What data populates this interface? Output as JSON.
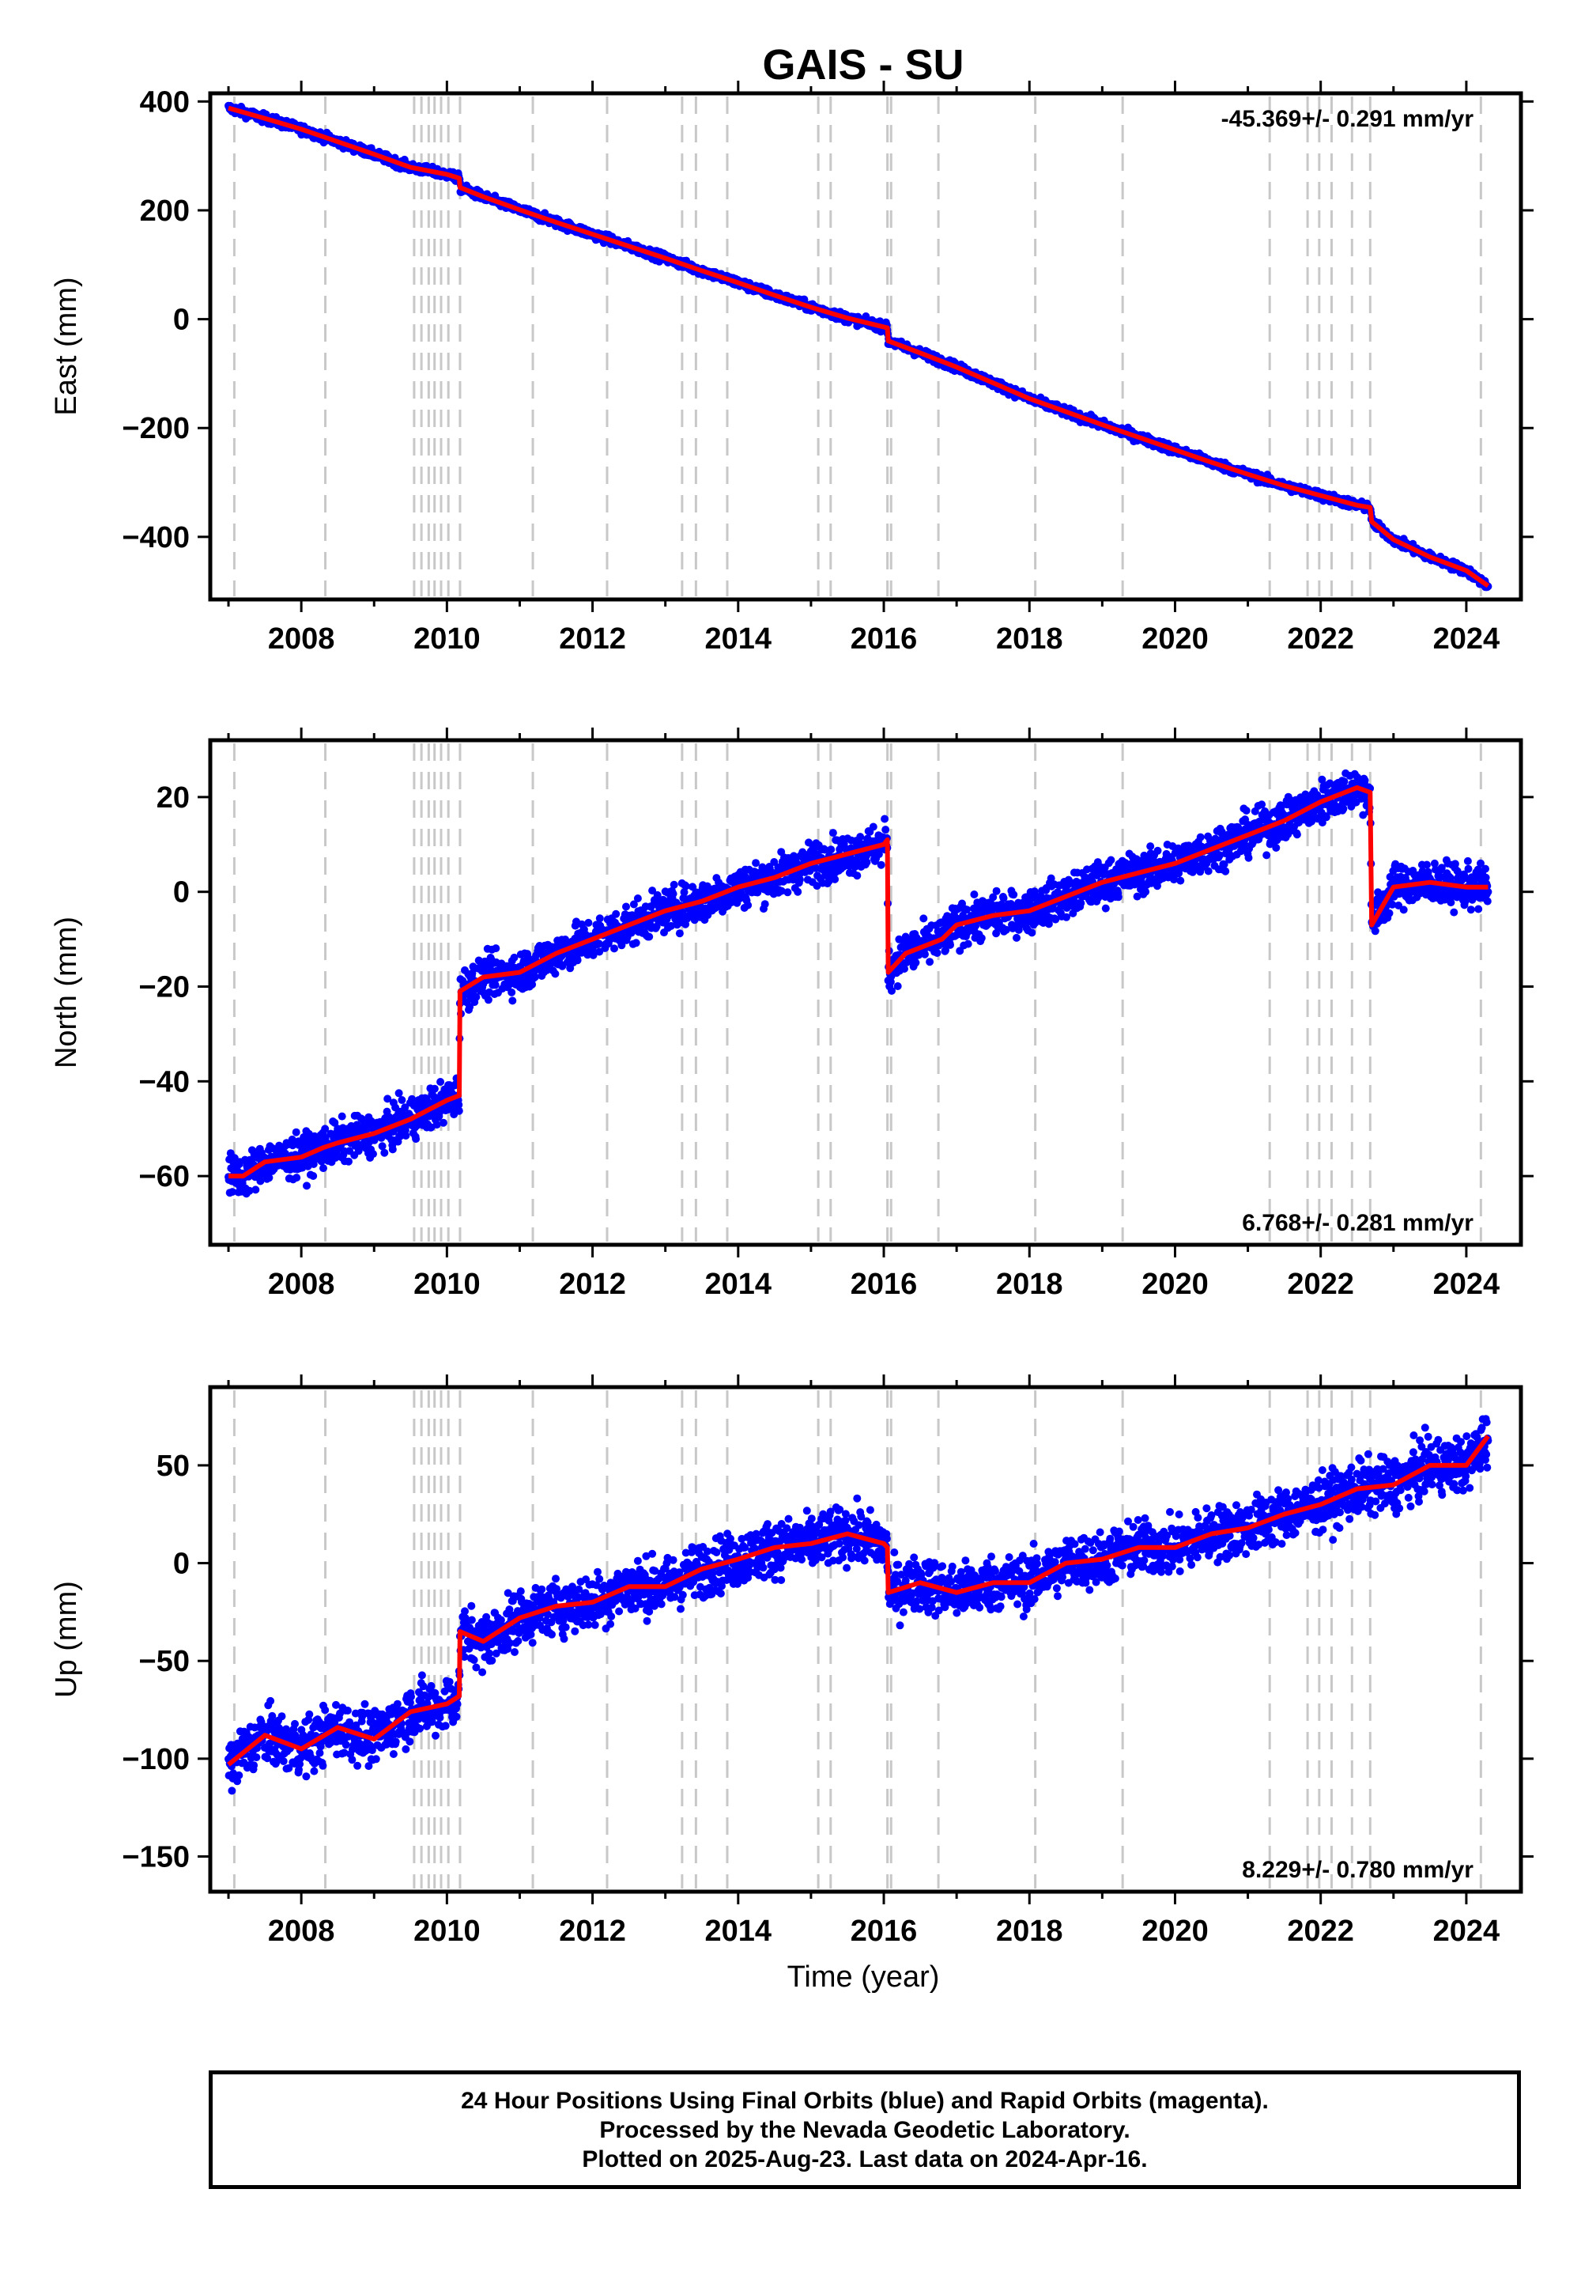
{
  "title": "GAIS - SU",
  "x_axis_label": "Time (year)",
  "x_ticks": [
    2008,
    2010,
    2012,
    2014,
    2016,
    2018,
    2020,
    2022,
    2024
  ],
  "x_range": [
    2006.75,
    2024.75
  ],
  "colors": {
    "final_orbits": "#0000ff",
    "model_fit": "#ff0000",
    "event_lines": "#c8c8c8",
    "axes": "#000000"
  },
  "event_lines_years": [
    2007.08,
    2008.33,
    2009.55,
    2009.65,
    2009.75,
    2009.83,
    2009.92,
    2010.02,
    2010.18,
    2011.18,
    2012.2,
    2013.23,
    2013.42,
    2013.85,
    2015.1,
    2015.27,
    2016.05,
    2016.1,
    2016.75,
    2018.08,
    2019.28,
    2021.3,
    2021.82,
    2021.98,
    2022.15,
    2022.43,
    2022.68,
    2024.2
  ],
  "chart_data": [
    {
      "type": "scatter",
      "panel": "east",
      "ylabel": "East (mm)",
      "ylim": [
        -515,
        415
      ],
      "yticks": [
        400,
        200,
        0,
        -200,
        -400
      ],
      "rate_text": "-45.369+/- 0.291 mm/yr",
      "rate_position": "top-right",
      "series": [
        {
          "type": "line",
          "x": [
            2007.0,
            2007.5,
            2008.0,
            2008.5,
            2009.0,
            2009.5,
            2010.0,
            2010.17,
            2010.18,
            2010.5,
            2011.0,
            2011.5,
            2012.0,
            2012.5,
            2013.0,
            2013.5,
            2014.0,
            2014.5,
            2015.0,
            2015.5,
            2016.05,
            2016.06,
            2016.5,
            2017.0,
            2017.5,
            2018.0,
            2018.5,
            2019.0,
            2019.5,
            2020.0,
            2020.5,
            2021.0,
            2021.5,
            2022.0,
            2022.5,
            2022.68,
            2022.7,
            2023.0,
            2023.5,
            2024.0,
            2024.3
          ],
          "values": [
            388,
            369,
            349,
            326,
            303,
            279,
            266,
            259,
            242,
            225,
            201,
            178,
            156,
            134,
            112,
            89,
            67,
            44,
            22,
            2,
            -16,
            -40,
            -62,
            -88,
            -117,
            -146,
            -170,
            -194,
            -217,
            -240,
            -263,
            -285,
            -306,
            -324,
            -342,
            -346,
            -372,
            -405,
            -437,
            -462,
            -490
          ]
        }
      ]
    },
    {
      "type": "scatter",
      "panel": "north",
      "ylabel": "North (mm)",
      "ylim": [
        -74.5,
        32
      ],
      "yticks": [
        20,
        0,
        -20,
        -40,
        -60
      ],
      "rate_text": "6.768+/- 0.281 mm/yr",
      "rate_position": "bottom-right",
      "series": [
        {
          "type": "line",
          "x": [
            2007.0,
            2007.2,
            2007.5,
            2008.0,
            2008.3,
            2008.5,
            2009.0,
            2009.5,
            2010.0,
            2010.17,
            2010.18,
            2010.5,
            2011.0,
            2011.5,
            2012.0,
            2012.5,
            2013.0,
            2013.5,
            2014.0,
            2014.5,
            2015.0,
            2015.5,
            2016.0,
            2016.05,
            2016.06,
            2016.3,
            2016.8,
            2017.0,
            2017.5,
            2018.0,
            2018.5,
            2019.0,
            2019.5,
            2020.0,
            2020.5,
            2021.0,
            2021.5,
            2022.0,
            2022.5,
            2022.68,
            2022.7,
            2023.0,
            2023.5,
            2024.0,
            2024.3
          ],
          "values": [
            -60,
            -60,
            -57,
            -56,
            -54,
            -53,
            -51,
            -48,
            -44,
            -43,
            -21,
            -18,
            -17,
            -13,
            -10,
            -7,
            -4,
            -2,
            1,
            3,
            6,
            8,
            10,
            11,
            -17,
            -13,
            -10,
            -7,
            -5,
            -4,
            -1,
            2,
            4,
            6,
            9,
            12,
            15,
            19,
            22,
            21,
            -7,
            1,
            2,
            1,
            1
          ]
        }
      ]
    },
    {
      "type": "scatter",
      "panel": "up",
      "ylabel": "Up (mm)",
      "ylim": [
        -168,
        90
      ],
      "yticks": [
        50,
        0,
        -50,
        -100,
        -150
      ],
      "rate_text": "8.229+/- 0.780 mm/yr",
      "rate_position": "bottom-right",
      "series": [
        {
          "type": "line",
          "x": [
            2007.0,
            2007.5,
            2008.0,
            2008.5,
            2009.0,
            2009.5,
            2010.0,
            2010.17,
            2010.18,
            2010.5,
            2011.0,
            2011.5,
            2012.0,
            2012.5,
            2013.0,
            2013.5,
            2014.0,
            2014.5,
            2015.0,
            2015.5,
            2016.0,
            2016.05,
            2016.06,
            2016.5,
            2017.0,
            2017.5,
            2018.0,
            2018.5,
            2019.0,
            2019.5,
            2020.0,
            2020.5,
            2021.0,
            2021.5,
            2022.0,
            2022.5,
            2023.0,
            2023.5,
            2024.0,
            2024.3
          ],
          "values": [
            -103,
            -88,
            -95,
            -84,
            -90,
            -76,
            -72,
            -68,
            -35,
            -40,
            -28,
            -22,
            -20,
            -12,
            -12,
            -3,
            2,
            8,
            10,
            15,
            10,
            8,
            -15,
            -10,
            -15,
            -10,
            -10,
            0,
            2,
            8,
            8,
            15,
            18,
            25,
            30,
            38,
            40,
            50,
            50,
            65
          ]
        }
      ]
    }
  ],
  "footer": {
    "line1": "24 Hour Positions Using Final Orbits (blue) and Rapid Orbits (magenta).",
    "line2": "Processed by the Nevada Geodetic Laboratory.",
    "line3": "Plotted on 2025-Aug-23. Last data on 2024-Apr-16."
  }
}
